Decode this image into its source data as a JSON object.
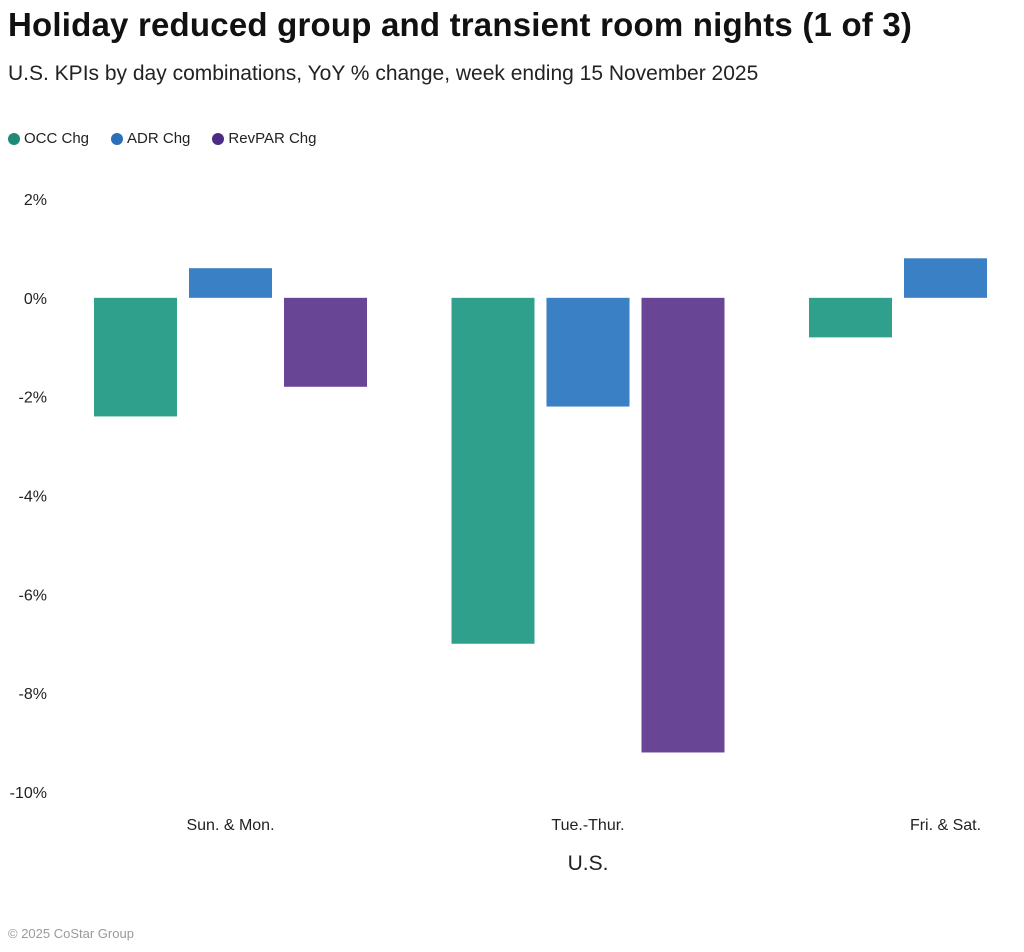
{
  "header": {
    "title": "Holiday reduced group and transient room nights (1 of 3)",
    "subtitle": "U.S. KPIs by day combinations, YoY % change, week ending 15 November 2025"
  },
  "footer": {
    "copyright": "© 2025 CoStar Group"
  },
  "chart_data": {
    "type": "bar",
    "title": "Holiday reduced group and transient room nights (1 of 3)",
    "subtitle": "U.S. KPIs by day combinations, YoY % change, week ending 15 November 2025",
    "xlabel": "U.S.",
    "ylabel": "",
    "categories": [
      "Sun. & Mon.",
      "Tue.-Thur.",
      "Fri. & Sat."
    ],
    "series": [
      {
        "name": "OCC Chg",
        "color": "#2fa08c",
        "legend_color": "#1f8a78",
        "values": [
          -2.4,
          -7.0,
          -0.8
        ]
      },
      {
        "name": "ADR Chg",
        "color": "#3a80c4",
        "legend_color": "#2a6fb8",
        "values": [
          0.6,
          -2.2,
          0.8
        ]
      },
      {
        "name": "RevPAR Chg",
        "color": "#694595",
        "legend_color": "#4b2a85",
        "values": [
          -1.8,
          -9.2,
          null
        ]
      }
    ],
    "ylim": [
      -10,
      2
    ],
    "yticks": [
      2,
      0,
      -2,
      -4,
      -6,
      -8,
      -10
    ],
    "ytick_labels": [
      "2%",
      "0%",
      "-2%",
      "-4%",
      "-6%",
      "-8%",
      "-10%"
    ],
    "grid": false,
    "legend_position": "top-left"
  }
}
